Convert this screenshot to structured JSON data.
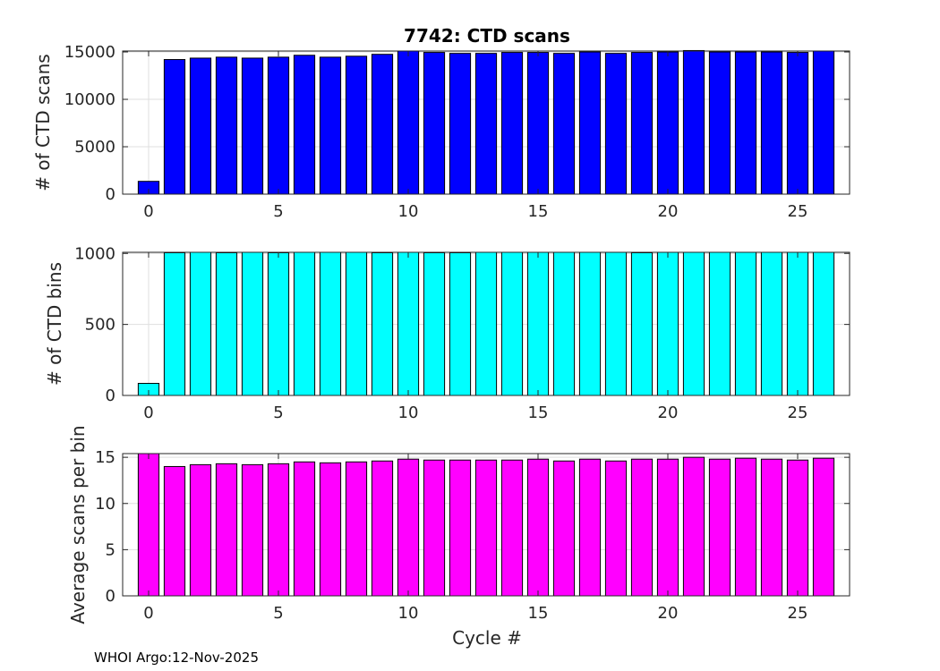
{
  "figure": {
    "footer": "WHOI Argo:12-Nov-2025",
    "xlabel": "Cycle #"
  },
  "chart_data": [
    {
      "type": "bar",
      "title": "7742: CTD scans",
      "xlabel": "",
      "ylabel": "# of CTD scans",
      "color": "#0000ff",
      "x": [
        0,
        1,
        2,
        3,
        4,
        5,
        6,
        7,
        8,
        9,
        10,
        11,
        12,
        13,
        14,
        15,
        16,
        17,
        18,
        19,
        20,
        21,
        22,
        23,
        24,
        25,
        26
      ],
      "values": [
        1350,
        14200,
        14350,
        14450,
        14350,
        14450,
        14650,
        14450,
        14550,
        14750,
        15100,
        14950,
        14850,
        14850,
        14950,
        14950,
        14850,
        15000,
        14850,
        14950,
        15000,
        15150,
        15000,
        15000,
        15000,
        14950,
        15100
      ],
      "xlim": [
        -1,
        27
      ],
      "ylim": [
        0,
        15100
      ],
      "xticks": [
        0,
        5,
        10,
        15,
        20,
        25
      ],
      "yticks": [
        0,
        5000,
        10000,
        15000
      ],
      "grid": true
    },
    {
      "type": "bar",
      "title": "",
      "xlabel": "",
      "ylabel": "# of CTD bins",
      "color": "#00ffff",
      "x": [
        0,
        1,
        2,
        3,
        4,
        5,
        6,
        7,
        8,
        9,
        10,
        11,
        12,
        13,
        14,
        15,
        16,
        17,
        18,
        19,
        20,
        21,
        22,
        23,
        24,
        25,
        26
      ],
      "values": [
        85,
        1005,
        1008,
        1005,
        1008,
        1005,
        1008,
        1008,
        1008,
        1005,
        1008,
        1005,
        1005,
        1008,
        1008,
        1008,
        1008,
        1008,
        1008,
        1005,
        1008,
        1008,
        1008,
        1008,
        1008,
        1008,
        1008
      ],
      "xlim": [
        -1,
        27
      ],
      "ylim": [
        0,
        1008
      ],
      "xticks": [
        0,
        5,
        10,
        15,
        20,
        25
      ],
      "yticks": [
        0,
        500,
        1000
      ],
      "grid": true
    },
    {
      "type": "bar",
      "title": "",
      "xlabel": "Cycle #",
      "ylabel": "Average scans per bin",
      "color": "#ff00ff",
      "x": [
        0,
        1,
        2,
        3,
        4,
        5,
        6,
        7,
        8,
        9,
        10,
        11,
        12,
        13,
        14,
        15,
        16,
        17,
        18,
        19,
        20,
        21,
        22,
        23,
        24,
        25,
        26
      ],
      "values": [
        15.4,
        14.0,
        14.2,
        14.3,
        14.2,
        14.3,
        14.5,
        14.4,
        14.5,
        14.6,
        14.8,
        14.7,
        14.7,
        14.7,
        14.7,
        14.8,
        14.6,
        14.8,
        14.6,
        14.8,
        14.8,
        15.0,
        14.8,
        14.9,
        14.8,
        14.7,
        14.9
      ],
      "xlim": [
        -1,
        27
      ],
      "ylim": [
        0,
        15.4
      ],
      "xticks": [
        0,
        5,
        10,
        15,
        20,
        25
      ],
      "yticks": [
        0,
        5,
        10,
        15
      ],
      "grid": true
    }
  ]
}
